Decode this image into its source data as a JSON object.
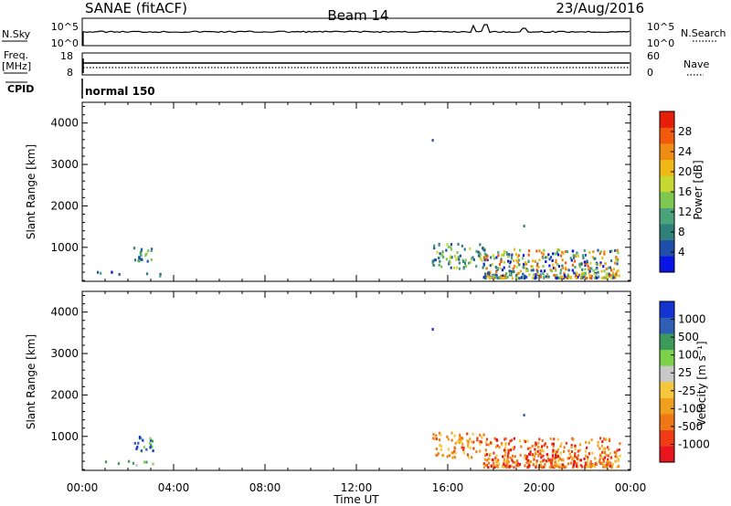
{
  "header": {
    "radar": "SANAE (fitACF)",
    "beam": "Beam 14",
    "date": "23/Aug/2016"
  },
  "top_panels": {
    "nsky_label": "N.Sky",
    "nsky_ticks": [
      "10^5",
      "10^0"
    ],
    "nsearch_label": "N.Search",
    "nsearch_ticks": [
      "10^5",
      "10^0"
    ],
    "freq_label_line1": "Freq.",
    "freq_label_line2": "[MHz]",
    "freq_ticks": [
      "18",
      "8"
    ],
    "nave_label": "Nave",
    "nave_ticks": [
      "60",
      "0"
    ],
    "cpid_label": "CPID",
    "cpid_value": "normal 150"
  },
  "colors": {
    "power_scale": [
      "#0a14e6",
      "#1f4fa8",
      "#2f7f7a",
      "#4aa37a",
      "#7ec850",
      "#c8d832",
      "#f0b814",
      "#f08c14",
      "#f05a0a",
      "#e61e0a"
    ],
    "velocity_scale": [
      "#e8141e",
      "#f03c14",
      "#f07814",
      "#f0a01e",
      "#f5c83c",
      "#c8c8c8",
      "#7ed24a",
      "#3c9b5a",
      "#2f5fb4",
      "#1432d2"
    ],
    "ground_scatter": "#969696"
  },
  "chart_data": [
    {
      "type": "heatmap",
      "name": "power",
      "xlabel": "",
      "ylabel": "Slant Range [km]",
      "colorbar_label": "Power [dB]",
      "colorbar_ticks": [
        "4",
        "8",
        "12",
        "16",
        "20",
        "24",
        "28"
      ],
      "colorbar_range": [
        0,
        30
      ],
      "xlim": [
        0,
        24
      ],
      "ylim": [
        180,
        4500
      ],
      "y_ticks": [
        "1000",
        "2000",
        "3000",
        "4000"
      ],
      "y_tick_values": [
        1000,
        2000,
        3000,
        4000
      ],
      "x_ticks": [
        "00:00",
        "04:00",
        "08:00",
        "12:00",
        "16:00",
        "20:00",
        "00:00"
      ],
      "x_tick_values": [
        0,
        4,
        8,
        12,
        16,
        20,
        24
      ]
    },
    {
      "type": "heatmap",
      "name": "velocity",
      "xlabel": "Time UT",
      "ylabel": "Slant Range [km]",
      "colorbar_label": "Velocity [m s⁻¹]",
      "colorbar_ticks": [
        "-1000",
        "-500",
        "-100",
        "-25",
        "25",
        "100",
        "500",
        "1000"
      ],
      "colorbar_range": [
        -1250,
        1250
      ],
      "xlim": [
        0,
        24
      ],
      "ylim": [
        180,
        4500
      ],
      "y_ticks": [
        "1000",
        "2000",
        "3000",
        "4000"
      ],
      "y_tick_values": [
        1000,
        2000,
        3000,
        4000
      ],
      "x_ticks": [
        "00:00",
        "04:00",
        "08:00",
        "12:00",
        "16:00",
        "20:00",
        "00:00"
      ],
      "x_tick_values": [
        0,
        4,
        8,
        12,
        16,
        20,
        24
      ]
    }
  ]
}
